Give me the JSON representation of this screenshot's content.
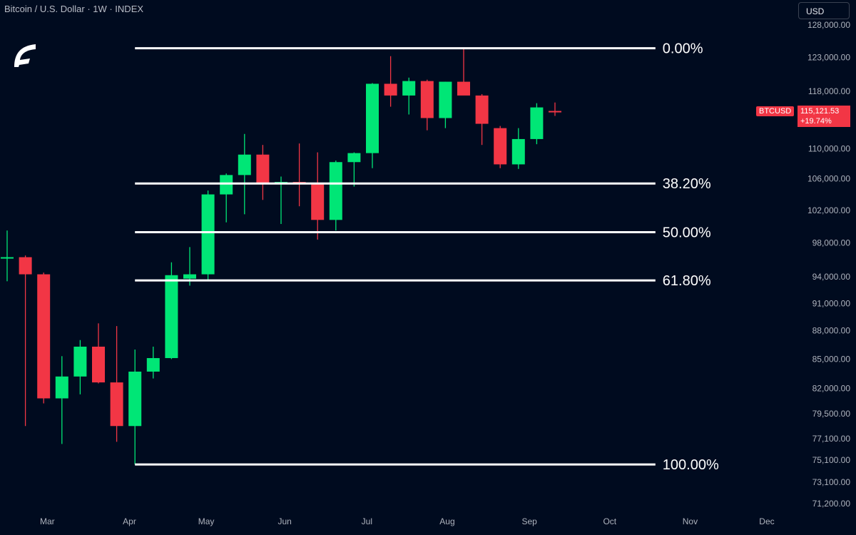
{
  "header": {
    "title": "Bitcoin / U.S. Dollar · 1W · INDEX"
  },
  "logo": {
    "icon": "brand-logo-icon"
  },
  "currency_button": {
    "label": "USD"
  },
  "last_price": {
    "ticker": "BTCUSD",
    "price": "115,121.53",
    "change": "+19.74%",
    "value": 115121.53,
    "color": "#f23645"
  },
  "colors": {
    "up": "#00e676",
    "down": "#f23645",
    "background": "#000b1f",
    "fib_line": "#ffffff"
  },
  "chart_data": {
    "type": "candlestick",
    "title": "Bitcoin / U.S. Dollar · 1W · INDEX",
    "y_scale": "log",
    "ylim": [
      70000,
      130000
    ],
    "y_ticks": [
      {
        "value": 128000,
        "label": "128,000.00"
      },
      {
        "value": 123000,
        "label": "123,000.00"
      },
      {
        "value": 118000,
        "label": "118,000.00"
      },
      {
        "value": 110000,
        "label": "110,000.00"
      },
      {
        "value": 106000,
        "label": "106,000.00"
      },
      {
        "value": 102000,
        "label": "102,000.00"
      },
      {
        "value": 98000,
        "label": "98,000.00"
      },
      {
        "value": 94000,
        "label": "94,000.00"
      },
      {
        "value": 91000,
        "label": "91,000.00"
      },
      {
        "value": 88000,
        "label": "88,000.00"
      },
      {
        "value": 85000,
        "label": "85,000.00"
      },
      {
        "value": 82000,
        "label": "82,000.00"
      },
      {
        "value": 79500,
        "label": "79,500.00"
      },
      {
        "value": 77100,
        "label": "77,100.00"
      },
      {
        "value": 75100,
        "label": "75,100.00"
      },
      {
        "value": 73100,
        "label": "73,100.00"
      },
      {
        "value": 71200,
        "label": "71,200.00"
      }
    ],
    "x_ticks": [
      {
        "week": 2.2,
        "label": "Mar"
      },
      {
        "week": 6.7,
        "label": "Apr"
      },
      {
        "week": 10.9,
        "label": "May"
      },
      {
        "week": 15.2,
        "label": "Jun"
      },
      {
        "week": 19.7,
        "label": "Jul"
      },
      {
        "week": 24.1,
        "label": "Aug"
      },
      {
        "week": 28.6,
        "label": "Sep"
      },
      {
        "week": 33.0,
        "label": "Oct"
      },
      {
        "week": 37.4,
        "label": "Nov"
      },
      {
        "week": 41.6,
        "label": "Dec"
      }
    ],
    "candles": [
      {
        "week": 0,
        "o": 96300,
        "h": 99500,
        "l": 93500,
        "c": 96300
      },
      {
        "week": 1,
        "o": 96300,
        "h": 96500,
        "l": 78300,
        "c": 94300
      },
      {
        "week": 2,
        "o": 94300,
        "h": 94500,
        "l": 80500,
        "c": 81000
      },
      {
        "week": 3,
        "o": 81000,
        "h": 85300,
        "l": 76600,
        "c": 83200
      },
      {
        "week": 4,
        "o": 83200,
        "h": 87000,
        "l": 81400,
        "c": 86300
      },
      {
        "week": 5,
        "o": 86300,
        "h": 88800,
        "l": 82500,
        "c": 82600
      },
      {
        "week": 6,
        "o": 82600,
        "h": 88500,
        "l": 76800,
        "c": 78300
      },
      {
        "week": 7,
        "o": 78300,
        "h": 86000,
        "l": 74700,
        "c": 83700
      },
      {
        "week": 8,
        "o": 83700,
        "h": 86300,
        "l": 83000,
        "c": 85100
      },
      {
        "week": 9,
        "o": 85100,
        "h": 95700,
        "l": 85000,
        "c": 94200
      },
      {
        "week": 10,
        "o": 93800,
        "h": 97500,
        "l": 93000,
        "c": 94300
      },
      {
        "week": 11,
        "o": 94300,
        "h": 104500,
        "l": 93600,
        "c": 104000
      },
      {
        "week": 12,
        "o": 104000,
        "h": 106700,
        "l": 100500,
        "c": 106500
      },
      {
        "week": 13,
        "o": 106500,
        "h": 112000,
        "l": 101500,
        "c": 109200
      },
      {
        "week": 14,
        "o": 109200,
        "h": 110500,
        "l": 103300,
        "c": 105400
      },
      {
        "week": 15,
        "o": 105400,
        "h": 106300,
        "l": 100300,
        "c": 105600
      },
      {
        "week": 16,
        "o": 105600,
        "h": 110700,
        "l": 102500,
        "c": 105500
      },
      {
        "week": 17,
        "o": 105500,
        "h": 109500,
        "l": 98400,
        "c": 100800
      },
      {
        "week": 18,
        "o": 100800,
        "h": 108400,
        "l": 99500,
        "c": 108200
      },
      {
        "week": 19,
        "o": 108200,
        "h": 109500,
        "l": 105000,
        "c": 109400
      },
      {
        "week": 20,
        "o": 109400,
        "h": 119200,
        "l": 107400,
        "c": 119100
      },
      {
        "week": 21,
        "o": 119100,
        "h": 123200,
        "l": 115800,
        "c": 117400
      },
      {
        "week": 22,
        "o": 117400,
        "h": 120000,
        "l": 114700,
        "c": 119500
      },
      {
        "week": 23,
        "o": 119500,
        "h": 119700,
        "l": 112500,
        "c": 114200
      },
      {
        "week": 24,
        "o": 114200,
        "h": 119400,
        "l": 112800,
        "c": 119400
      },
      {
        "week": 25,
        "o": 119400,
        "h": 124400,
        "l": 117700,
        "c": 117400
      },
      {
        "week": 26,
        "o": 117400,
        "h": 117600,
        "l": 110500,
        "c": 113400
      },
      {
        "week": 27,
        "o": 112800,
        "h": 113100,
        "l": 107400,
        "c": 107900
      },
      {
        "week": 28,
        "o": 107900,
        "h": 112800,
        "l": 107300,
        "c": 111300
      },
      {
        "week": 29,
        "o": 111300,
        "h": 116300,
        "l": 110600,
        "c": 115700
      },
      {
        "week": 30,
        "o": 115200,
        "h": 116400,
        "l": 114500,
        "c": 115100
      }
    ],
    "fib_levels": [
      {
        "label": "0.00%",
        "price": 124400,
        "from_week": 7,
        "to_week": 35.5
      },
      {
        "label": "38.20%",
        "price": 105400,
        "from_week": 7,
        "to_week": 35.5
      },
      {
        "label": "50.00%",
        "price": 99300,
        "from_week": 7,
        "to_week": 35.5
      },
      {
        "label": "61.80%",
        "price": 93600,
        "from_week": 7,
        "to_week": 35.5
      },
      {
        "label": "100.00%",
        "price": 74700,
        "from_week": 7,
        "to_week": 35.5
      }
    ]
  }
}
